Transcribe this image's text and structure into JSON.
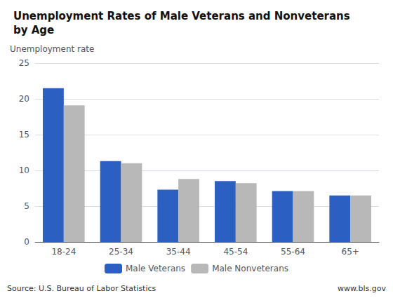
{
  "chart_data": {
    "type": "bar",
    "title": "Unemployment Rates of Male Veterans and Nonveterans\nby Age",
    "ylabel": "Unemployment rate",
    "categories": [
      "18-24",
      "25-34",
      "35-44",
      "45-54",
      "55-64",
      "65+"
    ],
    "series": [
      {
        "name": "Male Veterans",
        "color": "#2b5fc2",
        "values": [
          21.5,
          11.3,
          7.3,
          8.5,
          7.1,
          6.5
        ]
      },
      {
        "name": "Male Nonveterans",
        "color": "#b8b8b8",
        "values": [
          19.1,
          11.0,
          8.8,
          8.2,
          7.1,
          6.5
        ]
      }
    ],
    "ylim": [
      0,
      25
    ],
    "yticks": [
      0,
      5,
      10,
      15,
      20,
      25
    ],
    "grid": true,
    "legend": "bottom",
    "annotations": [
      "Source: U.S. Bureau of Labor Statistics",
      "www.bls.gov"
    ]
  }
}
